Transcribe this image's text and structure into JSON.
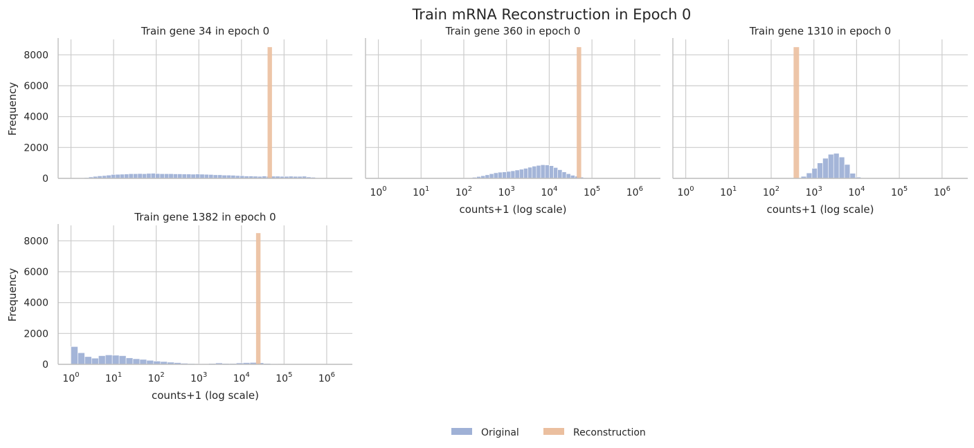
{
  "figure": {
    "suptitle": "Train mRNA Reconstruction in Epoch 0",
    "legend": {
      "placement": "bottom-center",
      "items": [
        {
          "label": "Original",
          "color": "#9fb1d6"
        },
        {
          "label": "Reconstruction",
          "color": "#ebbf9f"
        }
      ]
    }
  },
  "chart_data": [
    {
      "type": "bar",
      "title": "Train gene 34 in epoch 0",
      "xlabel": "",
      "ylabel": "Frequency",
      "xscale": "log",
      "xlim": [
        0.5,
        4000000
      ],
      "ylim": [
        0,
        9000
      ],
      "yticks": [
        0,
        2000,
        4000,
        6000,
        8000
      ],
      "xticks": [],
      "grid": true,
      "series": [
        {
          "name": "Original",
          "color": "#9fb1d6",
          "bins": [
            [
              1.0,
              1.27,
              10
            ],
            [
              1.27,
              1.61,
              20
            ],
            [
              1.61,
              2.05,
              30
            ],
            [
              2.05,
              2.6,
              50
            ],
            [
              2.6,
              3.3,
              90
            ],
            [
              3.3,
              4.2,
              130
            ],
            [
              4.2,
              5.4,
              160
            ],
            [
              5.4,
              6.8,
              180
            ],
            [
              6.8,
              8.7,
              210
            ],
            [
              8.7,
              11.1,
              250
            ],
            [
              11.1,
              14.1,
              260
            ],
            [
              14.1,
              17.9,
              270
            ],
            [
              17.9,
              22.7,
              280
            ],
            [
              22.7,
              28.9,
              300
            ],
            [
              28.9,
              36.8,
              300
            ],
            [
              36.8,
              46.7,
              310
            ],
            [
              46.7,
              59.4,
              300
            ],
            [
              59.4,
              75.5,
              320
            ],
            [
              75.5,
              96,
              330
            ],
            [
              96,
              122,
              310
            ],
            [
              122,
              155,
              300
            ],
            [
              155,
              197,
              300
            ],
            [
              197,
              251,
              300
            ],
            [
              251,
              319,
              290
            ],
            [
              319,
              405,
              290
            ],
            [
              405,
              515,
              280
            ],
            [
              515,
              655,
              280
            ],
            [
              655,
              833,
              270
            ],
            [
              833,
              1060,
              280
            ],
            [
              1060,
              1350,
              270
            ],
            [
              1350,
              1710,
              260
            ],
            [
              1710,
              2180,
              250
            ],
            [
              2180,
              2770,
              230
            ],
            [
              2770,
              3520,
              230
            ],
            [
              3520,
              4480,
              210
            ],
            [
              4480,
              5690,
              210
            ],
            [
              5690,
              7240,
              200
            ],
            [
              7240,
              9200,
              180
            ],
            [
              9200,
              11700,
              170
            ],
            [
              11700,
              14900,
              150
            ],
            [
              14900,
              18900,
              150
            ],
            [
              18900,
              24000,
              140
            ],
            [
              24000,
              30500,
              130
            ],
            [
              30500,
              38800,
              150
            ],
            [
              38800,
              49300,
              130
            ],
            [
              49300,
              62700,
              140
            ],
            [
              62700,
              79700,
              140
            ],
            [
              79700,
              101000,
              130
            ],
            [
              101000,
              129000,
              130
            ],
            [
              129000,
              164000,
              140
            ],
            [
              164000,
              208000,
              130
            ],
            [
              208000,
              265000,
              130
            ],
            [
              265000,
              336000,
              140
            ],
            [
              336000,
              428000,
              90
            ],
            [
              428000,
              544000,
              70
            ],
            [
              544000,
              691000,
              30
            ],
            [
              691000,
              879000,
              20
            ],
            [
              879000,
              1120000,
              10
            ]
          ]
        },
        {
          "name": "Reconstruction",
          "color": "#ebbf9f",
          "bins": [
            [
              41000,
              52000,
              8500
            ]
          ]
        }
      ]
    },
    {
      "type": "bar",
      "title": "Train gene 360 in epoch 0",
      "xlabel": "counts+1 (log scale)",
      "ylabel": "",
      "xscale": "log",
      "xlim": [
        0.5,
        4000000
      ],
      "ylim": [
        0,
        9000
      ],
      "yticks": [
        0,
        2000,
        4000,
        6000,
        8000
      ],
      "xticks": [
        {
          "value": 1,
          "base": "10",
          "exp": "0"
        },
        {
          "value": 10,
          "base": "10",
          "exp": "1"
        },
        {
          "value": 100,
          "base": "10",
          "exp": "2"
        },
        {
          "value": 1000,
          "base": "10",
          "exp": "3"
        },
        {
          "value": 10000,
          "base": "10",
          "exp": "4"
        },
        {
          "value": 100000,
          "base": "10",
          "exp": "5"
        },
        {
          "value": 1000000,
          "base": "10",
          "exp": "6"
        }
      ],
      "grid": true,
      "series": [
        {
          "name": "Original",
          "color": "#9fb1d6",
          "bins": [
            [
              1.0,
              10,
              5
            ],
            [
              10,
              50,
              5
            ],
            [
              50,
              100,
              8
            ],
            [
              100,
              126,
              20
            ],
            [
              126,
              158,
              40
            ],
            [
              158,
              200,
              70
            ],
            [
              200,
              251,
              120
            ],
            [
              251,
              316,
              170
            ],
            [
              316,
              398,
              230
            ],
            [
              398,
              501,
              300
            ],
            [
              501,
              631,
              360
            ],
            [
              631,
              794,
              400
            ],
            [
              794,
              1000,
              420
            ],
            [
              1000,
              1260,
              450
            ],
            [
              1260,
              1580,
              490
            ],
            [
              1580,
              2000,
              540
            ],
            [
              2000,
              2510,
              590
            ],
            [
              2510,
              3160,
              650
            ],
            [
              3160,
              3980,
              720
            ],
            [
              3980,
              5010,
              790
            ],
            [
              5010,
              6310,
              840
            ],
            [
              6310,
              7940,
              880
            ],
            [
              7940,
              10000,
              870
            ],
            [
              10000,
              12600,
              820
            ],
            [
              12600,
              15800,
              700
            ],
            [
              15800,
              20000,
              560
            ],
            [
              20000,
              25100,
              420
            ],
            [
              25100,
              31600,
              300
            ],
            [
              31600,
              39800,
              200
            ],
            [
              39800,
              50100,
              140
            ],
            [
              50100,
              63100,
              80
            ],
            [
              63100,
              79400,
              40
            ],
            [
              79400,
              100000,
              20
            ],
            [
              100000,
              158000,
              10
            ]
          ]
        },
        {
          "name": "Reconstruction",
          "color": "#ebbf9f",
          "bins": [
            [
              44000,
              56000,
              8500
            ]
          ]
        }
      ]
    },
    {
      "type": "bar",
      "title": "Train gene 1310 in epoch 0",
      "xlabel": "counts+1 (log scale)",
      "ylabel": "",
      "xscale": "log",
      "xlim": [
        0.5,
        4000000
      ],
      "ylim": [
        0,
        9000
      ],
      "yticks": [
        0,
        2000,
        4000,
        6000,
        8000
      ],
      "xticks": [
        {
          "value": 1,
          "base": "10",
          "exp": "0"
        },
        {
          "value": 10,
          "base": "10",
          "exp": "1"
        },
        {
          "value": 100,
          "base": "10",
          "exp": "2"
        },
        {
          "value": 1000,
          "base": "10",
          "exp": "3"
        },
        {
          "value": 10000,
          "base": "10",
          "exp": "4"
        },
        {
          "value": 100000,
          "base": "10",
          "exp": "5"
        },
        {
          "value": 1000000,
          "base": "10",
          "exp": "6"
        }
      ],
      "grid": true,
      "series": [
        {
          "name": "Original",
          "color": "#9fb1d6",
          "bins": [
            [
              500,
              670,
              130
            ],
            [
              670,
              900,
              350
            ],
            [
              900,
              1200,
              650
            ],
            [
              1200,
              1610,
              1000
            ],
            [
              1610,
              2160,
              1300
            ],
            [
              2160,
              2900,
              1560
            ],
            [
              2900,
              3890,
              1620
            ],
            [
              3890,
              5220,
              1380
            ],
            [
              5220,
              7000,
              900
            ],
            [
              7000,
              9400,
              330
            ],
            [
              9400,
              12600,
              80
            ],
            [
              12600,
              17000,
              20
            ]
          ]
        },
        {
          "name": "Reconstruction",
          "color": "#ebbf9f",
          "bins": [
            [
              335,
              450,
              8500
            ]
          ]
        }
      ]
    },
    {
      "type": "bar",
      "title": "Train gene 1382 in epoch 0",
      "xlabel": "counts+1 (log scale)",
      "ylabel": "Frequency",
      "xscale": "log",
      "xlim": [
        0.5,
        4000000
      ],
      "ylim": [
        0,
        9000
      ],
      "yticks": [
        0,
        2000,
        4000,
        6000,
        8000
      ],
      "xticks": [
        {
          "value": 1,
          "base": "10",
          "exp": "0"
        },
        {
          "value": 10,
          "base": "10",
          "exp": "1"
        },
        {
          "value": 100,
          "base": "10",
          "exp": "2"
        },
        {
          "value": 1000,
          "base": "10",
          "exp": "3"
        },
        {
          "value": 10000,
          "base": "10",
          "exp": "4"
        },
        {
          "value": 100000,
          "base": "10",
          "exp": "5"
        },
        {
          "value": 1000000,
          "base": "10",
          "exp": "6"
        }
      ],
      "grid": true,
      "series": [
        {
          "name": "Original",
          "color": "#9fb1d6",
          "bins": [
            [
              1.0,
              1.45,
              1150
            ],
            [
              1.45,
              2.1,
              750
            ],
            [
              2.1,
              3.05,
              500
            ],
            [
              3.05,
              4.42,
              400
            ],
            [
              4.42,
              6.41,
              560
            ],
            [
              6.41,
              9.3,
              610
            ],
            [
              9.3,
              13.5,
              590
            ],
            [
              13.5,
              19.6,
              560
            ],
            [
              19.6,
              28.4,
              420
            ],
            [
              28.4,
              41.2,
              360
            ],
            [
              41.2,
              59.7,
              320
            ],
            [
              59.7,
              86.6,
              260
            ],
            [
              86.6,
              126,
              210
            ],
            [
              126,
              182,
              180
            ],
            [
              182,
              265,
              140
            ],
            [
              265,
              384,
              110
            ],
            [
              384,
              557,
              70
            ],
            [
              557,
              808,
              50
            ],
            [
              808,
              1170,
              40
            ],
            [
              1170,
              1700,
              40
            ],
            [
              1700,
              2470,
              60
            ],
            [
              2470,
              3580,
              90
            ],
            [
              3580,
              5190,
              60
            ],
            [
              5190,
              7530,
              60
            ],
            [
              7530,
              10900,
              90
            ],
            [
              10900,
              15800,
              110
            ],
            [
              15800,
              23000,
              120
            ],
            [
              23000,
              33300,
              100
            ],
            [
              33300,
              48300,
              60
            ],
            [
              48300,
              70000,
              30
            ],
            [
              70000,
              101000,
              10
            ]
          ]
        },
        {
          "name": "Reconstruction",
          "color": "#ebbf9f",
          "bins": [
            [
              22000,
              28000,
              8500
            ]
          ]
        }
      ]
    }
  ]
}
